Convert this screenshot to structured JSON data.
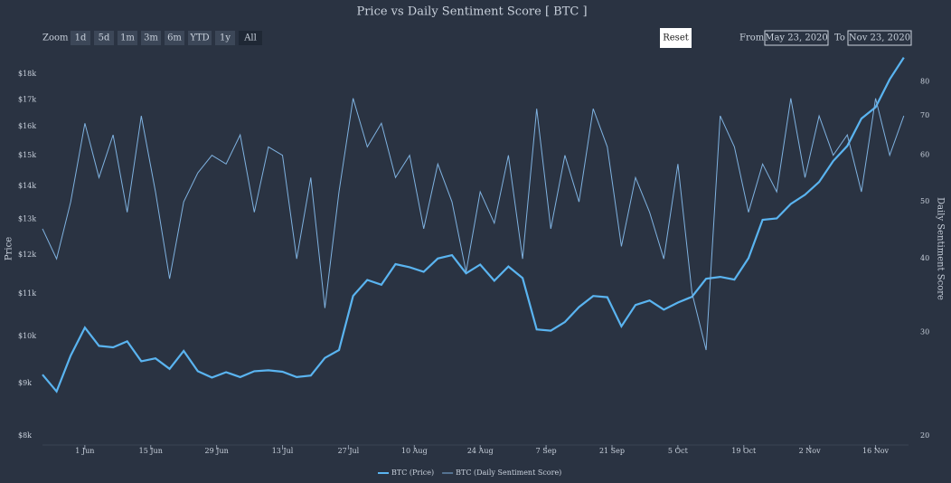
{
  "toolbar": {
    "zoom_label": "Zoom",
    "zoom_buttons": [
      "1d",
      "5d",
      "1m",
      "3m",
      "6m",
      "YTD",
      "1y",
      "All"
    ],
    "reset": "Reset",
    "from_label": "From",
    "from": "May 23, 2020",
    "to_label": "To",
    "to": "Nov 23, 2020"
  },
  "chart_data": {
    "type": "line",
    "title": "Price vs Daily Sentiment Score [ BTC ]",
    "y_label": "Price",
    "y2_label": "Daily Sentiment Score",
    "x": [
      "2020-05-23",
      "2020-05-26",
      "2020-05-29",
      "2020-06-01",
      "2020-06-04",
      "2020-06-07",
      "2020-06-10",
      "2020-06-13",
      "2020-06-16",
      "2020-06-19",
      "2020-06-22",
      "2020-06-25",
      "2020-06-28",
      "2020-07-01",
      "2020-07-04",
      "2020-07-07",
      "2020-07-10",
      "2020-07-13",
      "2020-07-16",
      "2020-07-19",
      "2020-07-22",
      "2020-07-25",
      "2020-07-28",
      "2020-07-31",
      "2020-08-03",
      "2020-08-06",
      "2020-08-09",
      "2020-08-12",
      "2020-08-15",
      "2020-08-18",
      "2020-08-21",
      "2020-08-24",
      "2020-08-27",
      "2020-08-30",
      "2020-09-02",
      "2020-09-05",
      "2020-09-08",
      "2020-09-11",
      "2020-09-14",
      "2020-09-17",
      "2020-09-20",
      "2020-09-23",
      "2020-09-26",
      "2020-09-29",
      "2020-10-02",
      "2020-10-05",
      "2020-10-08",
      "2020-10-11",
      "2020-10-14",
      "2020-10-17",
      "2020-10-20",
      "2020-10-23",
      "2020-10-26",
      "2020-10-29",
      "2020-11-01",
      "2020-11-04",
      "2020-11-07",
      "2020-11-10",
      "2020-11-13",
      "2020-11-16",
      "2020-11-19",
      "2020-11-22"
    ],
    "series": [
      {
        "name": "BTC (Price)",
        "color": "#5ab4f0",
        "values": [
          9180,
          8840,
          9580,
          10200,
          9790,
          9760,
          9890,
          9460,
          9520,
          9300,
          9680,
          9250,
          9120,
          9230,
          9130,
          9250,
          9270,
          9240,
          9130,
          9160,
          9530,
          9700,
          10950,
          11350,
          11230,
          11760,
          11680,
          11560,
          11910,
          12000,
          11520,
          11750,
          11330,
          11700,
          11400,
          10160,
          10130,
          10330,
          10680,
          10950,
          10920,
          10230,
          10730,
          10840,
          10620,
          10790,
          10930,
          11380,
          11430,
          11360,
          11920,
          12990,
          13030,
          13460,
          13740,
          14140,
          14820,
          15330,
          16300,
          16720,
          17800,
          18690
        ]
      },
      {
        "name": "BTC (Daily Sentiment Score)",
        "color": "#7fb2e0",
        "axis": "y2",
        "values": [
          45,
          40,
          50,
          68,
          55,
          65,
          48,
          70,
          52,
          37,
          50,
          56,
          60,
          58,
          65,
          48,
          62,
          60,
          40,
          55,
          33,
          52,
          75,
          62,
          68,
          55,
          60,
          45,
          58,
          50,
          38,
          52,
          46,
          60,
          40,
          72,
          45,
          60,
          50,
          72,
          62,
          42,
          55,
          48,
          40,
          58,
          35,
          28,
          70,
          62,
          48,
          58,
          52,
          75,
          55,
          70,
          60,
          65,
          52,
          75,
          60,
          70
        ]
      }
    ],
    "xlim": [
      "2020-05-23",
      "2020-11-23"
    ],
    "xticks": [
      {
        "value": "2020-06-01",
        "label": "1 Jun"
      },
      {
        "value": "2020-06-15",
        "label": "15 Jun"
      },
      {
        "value": "2020-06-29",
        "label": "29 Jun"
      },
      {
        "value": "2020-07-13",
        "label": "13 Jul"
      },
      {
        "value": "2020-07-27",
        "label": "27 Jul"
      },
      {
        "value": "2020-08-10",
        "label": "10 Aug"
      },
      {
        "value": "2020-08-24",
        "label": "24 Aug"
      },
      {
        "value": "2020-09-07",
        "label": "7 Sep"
      },
      {
        "value": "2020-09-21",
        "label": "21 Sep"
      },
      {
        "value": "2020-10-05",
        "label": "5 Oct"
      },
      {
        "value": "2020-10-19",
        "label": "19 Oct"
      },
      {
        "value": "2020-11-02",
        "label": "2 Nov"
      },
      {
        "value": "2020-11-16",
        "label": "16 Nov"
      }
    ],
    "ylim": [
      8000,
      18450
    ],
    "ylog": true,
    "yticks": [
      {
        "value": 8000,
        "label": "$8k"
      },
      {
        "value": 9000,
        "label": "$9k"
      },
      {
        "value": 10000,
        "label": "$10k"
      },
      {
        "value": 11000,
        "label": "$11k"
      },
      {
        "value": 12000,
        "label": "$12k"
      },
      {
        "value": 13000,
        "label": "$13k"
      },
      {
        "value": 14000,
        "label": "$14k"
      },
      {
        "value": 15000,
        "label": "$15k"
      },
      {
        "value": 16000,
        "label": "$16k"
      },
      {
        "value": 17000,
        "label": "$17k"
      },
      {
        "value": 18000,
        "label": "$18k"
      }
    ],
    "y2lim": [
      20,
      86
    ],
    "y2log": true,
    "y2ticks": [
      20,
      30,
      40,
      50,
      60,
      70,
      80
    ],
    "legend": "bottom"
  }
}
